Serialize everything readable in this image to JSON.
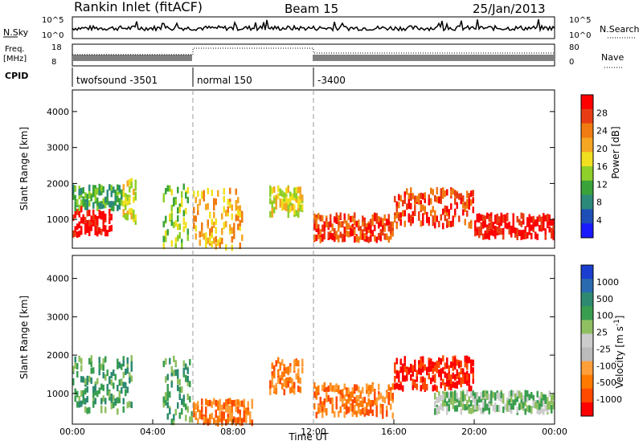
{
  "header": {
    "title": "Rankin Inlet (fitACF)",
    "beam": "Beam 15",
    "date": "25/Jan/2013"
  },
  "top_panels": {
    "nsky_label": "N.Sky",
    "nsky_ticks": [
      "10^5",
      "10^0"
    ],
    "nsearch_label": "N.Search",
    "nsearch_ticks": [
      "10^5",
      "10^0"
    ],
    "freq_label": "Freq.",
    "freq_unit": "[MHz]",
    "freq_ticks": [
      "18",
      "8"
    ],
    "nave_label": "Nave",
    "nave_ticks": [
      "80",
      "0"
    ],
    "cpid_label": "CPID",
    "cpid_segments": [
      {
        "label": "twofsound -3501",
        "start_hour": 0
      },
      {
        "label": "normal 150",
        "start_hour": 6
      },
      {
        "label": "-3400",
        "start_hour": 12
      }
    ]
  },
  "colors": {
    "power_scale": [
      "#1a1aff",
      "#1e4fb8",
      "#2b8a7a",
      "#3aa33a",
      "#8fcf2a",
      "#f0e020",
      "#f5a623",
      "#f07b12",
      "#e83d14",
      "#ff0000"
    ],
    "velocity_scale": [
      "#1a3fd0",
      "#2a6bb0",
      "#2e8a70",
      "#3a9e50",
      "#8fbf60",
      "#cccccc",
      "#bbbbbb",
      "#ff9f3a",
      "#ff7a00",
      "#ff4a00",
      "#ff0000"
    ]
  },
  "chart_data": [
    {
      "type": "heatmap",
      "panel": "power",
      "ylabel": "Slant Range [km]",
      "y_ticks": [
        "1000",
        "2000",
        "3000",
        "4000"
      ],
      "ylim": [
        200,
        4600
      ],
      "colorbar_label": "Power [dB]",
      "colorbar_ticks": [
        "4",
        "8",
        "12",
        "16",
        "20",
        "24",
        "28"
      ],
      "regions": [
        {
          "x": [
            0.0,
            0.5
          ],
          "y": [
            600,
            1400
          ],
          "level": 9
        },
        {
          "x": [
            0.5,
            2.0
          ],
          "y": [
            700,
            1300
          ],
          "level": 9
        },
        {
          "x": [
            0.0,
            2.5
          ],
          "y": [
            1400,
            2000
          ],
          "level": 3
        },
        {
          "x": [
            2.5,
            3.2
          ],
          "y": [
            1000,
            2200
          ],
          "level": 5
        },
        {
          "x": [
            4.5,
            5.8
          ],
          "y": [
            300,
            2000
          ],
          "level": 4
        },
        {
          "x": [
            6.0,
            8.5
          ],
          "y": [
            300,
            1900
          ],
          "level": 6
        },
        {
          "x": [
            9.8,
            11.5
          ],
          "y": [
            1200,
            1950
          ],
          "level": 5
        },
        {
          "x": [
            12.0,
            16.0
          ],
          "y": [
            500,
            1200
          ],
          "level": 8
        },
        {
          "x": [
            16.0,
            20.0
          ],
          "y": [
            900,
            1900
          ],
          "level": 8
        },
        {
          "x": [
            20.0,
            24.0
          ],
          "y": [
            600,
            1200
          ],
          "level": 9
        }
      ]
    },
    {
      "type": "heatmap",
      "panel": "velocity",
      "ylabel": "Slant Range [km]",
      "y_ticks": [
        "1000",
        "2000",
        "3000",
        "4000"
      ],
      "ylim": [
        200,
        4600
      ],
      "colorbar_label": "Velocity [m s^-1]",
      "colorbar_ticks": [
        "1000",
        "500",
        "100",
        "25",
        "-25",
        "-100",
        "-500",
        "-1000"
      ],
      "xlabel": "Time UT",
      "x_ticks": [
        "00:00",
        "04:00",
        "08:00",
        "12:00",
        "16:00",
        "20:00",
        "00:00"
      ],
      "xlim": [
        0,
        24
      ],
      "regions": [
        {
          "x": [
            0.0,
            3.0
          ],
          "y": [
            600,
            2000
          ],
          "level": 3
        },
        {
          "x": [
            4.5,
            6.0
          ],
          "y": [
            300,
            2000
          ],
          "level": 3
        },
        {
          "x": [
            6.0,
            9.0
          ],
          "y": [
            300,
            900
          ],
          "level": 8
        },
        {
          "x": [
            9.8,
            11.5
          ],
          "y": [
            1100,
            1950
          ],
          "level": 8
        },
        {
          "x": [
            12.0,
            16.0
          ],
          "y": [
            500,
            1300
          ],
          "level": 8
        },
        {
          "x": [
            16.0,
            20.0
          ],
          "y": [
            1200,
            2000
          ],
          "level": 10
        },
        {
          "x": [
            18.0,
            24.0
          ],
          "y": [
            600,
            1100
          ],
          "level": 4
        }
      ]
    }
  ]
}
